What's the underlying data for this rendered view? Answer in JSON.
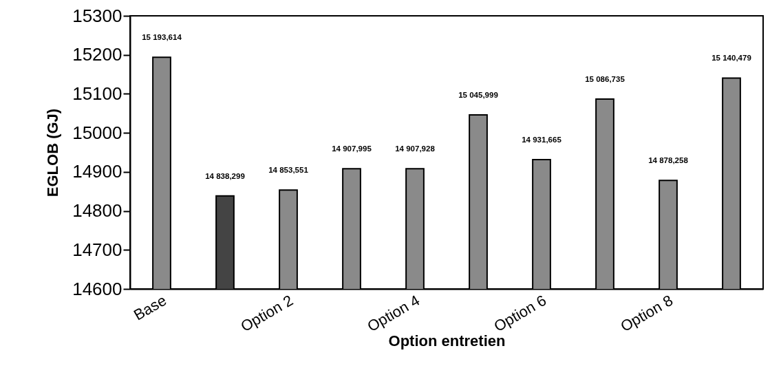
{
  "chart_data": {
    "type": "bar",
    "xlabel": "Option entretien",
    "ylabel": "EGLOB  (GJ)",
    "categories": [
      "Base",
      null,
      "Option 2",
      null,
      "Option 4",
      null,
      "Option 6",
      null,
      "Option 8",
      null
    ],
    "values": [
      15193.614,
      14838.299,
      14853.551,
      14907.995,
      14907.928,
      15045.999,
      14931.665,
      15086.735,
      14878.258,
      15140.479
    ],
    "value_labels": [
      "15 193,614",
      "14 838,299",
      "14 853,551",
      "14 907,995",
      "14 907,928",
      "15 045,999",
      "14 931,665",
      "15 086,735",
      "14 878,258",
      "15 140,479"
    ],
    "colors": [
      "#8a8a8a",
      "#444444",
      "#8a8a8a",
      "#8a8a8a",
      "#8a8a8a",
      "#8a8a8a",
      "#8a8a8a",
      "#8a8a8a",
      "#8a8a8a",
      "#8a8a8a"
    ],
    "ylim": [
      14600,
      15300
    ],
    "yticks": [
      14600,
      14700,
      14800,
      14900,
      15000,
      15100,
      15200,
      15300
    ],
    "grid": false
  }
}
